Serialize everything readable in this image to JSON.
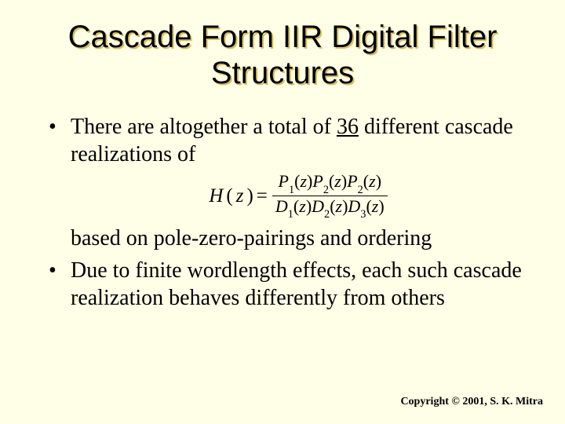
{
  "colors": {
    "background": "#ffffe7",
    "title_shadow": "#d8c060",
    "text": "#000000",
    "rule": "#000000"
  },
  "typography": {
    "title_family": "Arial",
    "title_size_pt": 40,
    "body_family": "Times New Roman",
    "body_size_pt": 28,
    "equation_size_pt": 25,
    "copyright_size_pt": 14
  },
  "title": "Cascade Form IIR Digital Filter Structures",
  "bullets": [
    {
      "pre": "There are altogether a total of ",
      "underlined": "36",
      "post": " different cascade realizations of",
      "equation": {
        "lhs_var": "H",
        "lhs_arg": "z",
        "numerator_terms": [
          {
            "sym": "P",
            "sub": "1",
            "arg": "z"
          },
          {
            "sym": "P",
            "sub": "2",
            "arg": "z"
          },
          {
            "sym": "P",
            "sub": "2",
            "arg": "z"
          }
        ],
        "denominator_terms": [
          {
            "sym": "D",
            "sub": "1",
            "arg": "z"
          },
          {
            "sym": "D",
            "sub": "2",
            "arg": "z"
          },
          {
            "sym": "D",
            "sub": "3",
            "arg": "z"
          }
        ]
      },
      "continuation": "based on pole-zero-pairings and ordering"
    },
    {
      "text": "Due to finite wordlength effects, each such cascade realization behaves differently from others"
    }
  ],
  "copyright": "Copyright © 2001, S. K. Mitra"
}
